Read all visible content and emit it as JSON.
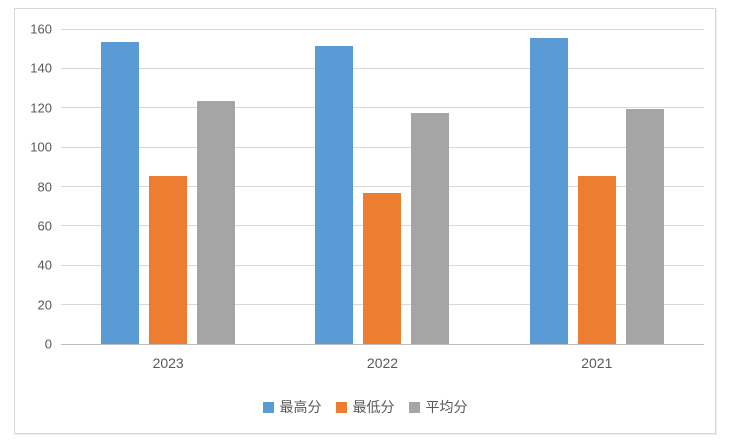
{
  "chart_data": {
    "type": "bar",
    "title": "",
    "xlabel": "",
    "ylabel": "",
    "categories": [
      "2023",
      "2022",
      "2021"
    ],
    "series": [
      {
        "name": "最高分",
        "color": "#5B9BD5",
        "values": [
          153.5,
          151.5,
          155.5
        ]
      },
      {
        "name": "最低分",
        "color": "#ED7D31",
        "values": [
          85.5,
          76.5,
          85.5
        ]
      },
      {
        "name": "平均分",
        "color": "#A5A5A5",
        "values": [
          123.5,
          117.5,
          119.5
        ]
      }
    ],
    "ylim": [
      0,
      160
    ],
    "yticks": [
      0,
      20,
      40,
      60,
      80,
      100,
      120,
      140,
      160
    ],
    "grid": true,
    "legend_position": "bottom"
  },
  "colors": {
    "bar_blue": "#5B9BD5",
    "bar_orange": "#ED7D31",
    "bar_gray": "#A5A5A5",
    "gridline": "#D9D9D9",
    "axis_line": "#BFBFBF",
    "tick_text": "#595959",
    "frame_border": "#D9D9D9",
    "background": "#FFFFFF"
  }
}
